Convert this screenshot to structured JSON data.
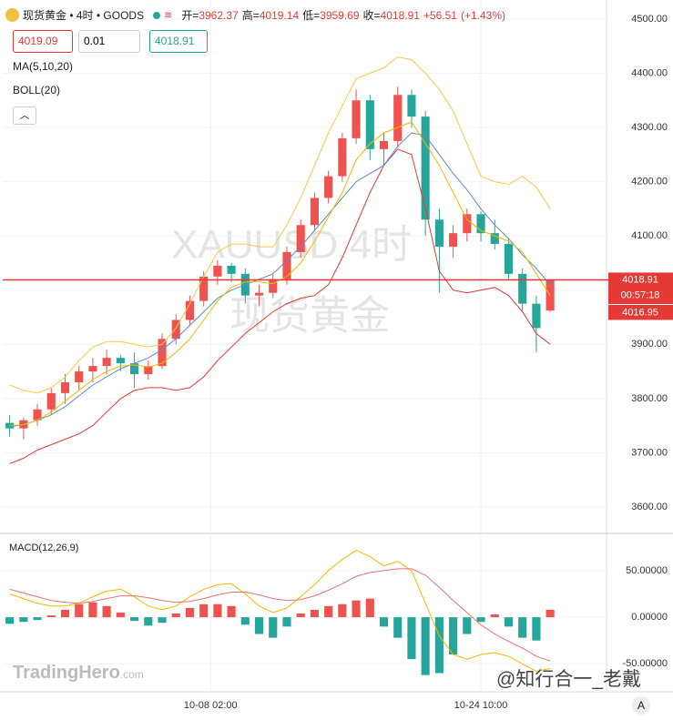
{
  "header": {
    "symbol": "现货黄金 • 4时 • GOODS",
    "ohlc": [
      {
        "label": "开=",
        "value": "3962.37"
      },
      {
        "label": "高=",
        "value": "4019.14"
      },
      {
        "label": "低=",
        "value": "3959.69"
      },
      {
        "label": "收=",
        "value": "4018.91"
      }
    ],
    "change": "+56.51",
    "change_pct": "(+1.43%)",
    "inputs": [
      "4019.09",
      "0.01",
      "4018.91"
    ],
    "indicators": [
      "MA(5,10,20)",
      "BOLL(20)"
    ]
  },
  "chart_data": [
    {
      "type": "candlestick",
      "up_color": "#ef5350",
      "down_color": "#26a69a",
      "grid": true,
      "watermark": [
        "XAUUSD 4时",
        "现货黄金"
      ],
      "x": [
        0,
        1,
        2,
        3,
        4,
        5,
        6,
        7,
        8,
        9,
        10,
        11,
        12,
        13,
        14,
        15,
        16,
        17,
        18,
        19,
        20,
        21,
        22,
        23,
        24,
        25,
        26,
        27,
        28,
        29,
        30,
        31,
        32,
        33,
        34,
        35,
        36,
        37,
        38,
        39
      ],
      "open": [
        3755,
        3745,
        3760,
        3780,
        3810,
        3830,
        3850,
        3860,
        3875,
        3865,
        3845,
        3860,
        3910,
        3945,
        3980,
        4025,
        4045,
        4030,
        3990,
        3995,
        4020,
        4070,
        4120,
        4170,
        4210,
        4280,
        4350,
        4260,
        4275,
        4360,
        4320,
        4130,
        4080,
        4105,
        4140,
        4105,
        4085,
        4030,
        3975,
        3962.37
      ],
      "high": [
        3770,
        3765,
        3790,
        3820,
        3845,
        3860,
        3875,
        3890,
        3880,
        3885,
        3870,
        3920,
        3955,
        3990,
        4035,
        4055,
        4050,
        4040,
        4010,
        4030,
        4080,
        4130,
        4180,
        4220,
        4290,
        4370,
        4360,
        4290,
        4375,
        4370,
        4330,
        4150,
        4120,
        4150,
        4145,
        4130,
        4095,
        4040,
        3990,
        4019.14
      ],
      "low": [
        3730,
        3725,
        3750,
        3770,
        3790,
        3815,
        3830,
        3845,
        3850,
        3820,
        3835,
        3855,
        3900,
        3935,
        3970,
        4010,
        4015,
        3975,
        3970,
        3985,
        4010,
        4060,
        4110,
        4160,
        4200,
        4270,
        4240,
        4230,
        4265,
        4300,
        4100,
        3995,
        4060,
        4090,
        4090,
        4075,
        4020,
        3960,
        3885,
        3959.69
      ],
      "close": [
        3745,
        3760,
        3780,
        3810,
        3830,
        3850,
        3860,
        3875,
        3865,
        3845,
        3860,
        3910,
        3945,
        3980,
        4025,
        4045,
        4030,
        3990,
        3995,
        4020,
        4070,
        4120,
        4170,
        4210,
        4280,
        4350,
        4260,
        4275,
        4360,
        4320,
        4130,
        4080,
        4105,
        4140,
        4105,
        4085,
        4030,
        3975,
        3930,
        4018.91
      ],
      "series": [
        {
          "color": "#f2c94c",
          "values": [
            3825,
            3815,
            3810,
            3820,
            3840,
            3870,
            3895,
            3905,
            3905,
            3900,
            3895,
            3900,
            3930,
            3975,
            4025,
            4070,
            4085,
            4085,
            4080,
            4080,
            4120,
            4170,
            4230,
            4290,
            4340,
            4390,
            4400,
            4410,
            4430,
            4425,
            4400,
            4370,
            4330,
            4270,
            4210,
            4200,
            4195,
            4210,
            4190,
            4150
          ]
        },
        {
          "color": "#e53935",
          "values": [
            3680,
            3690,
            3705,
            3715,
            3725,
            3735,
            3750,
            3775,
            3800,
            3815,
            3820,
            3820,
            3815,
            3820,
            3840,
            3870,
            3895,
            3920,
            3940,
            3960,
            3975,
            3985,
            3990,
            4010,
            4060,
            4120,
            4180,
            4230,
            4260,
            4250,
            4150,
            4035,
            4000,
            3995,
            4000,
            4005,
            3990,
            3960,
            3920,
            3900
          ]
        },
        {
          "color": "#5b8bc9",
          "values": [
            3748,
            3752,
            3760,
            3770,
            3785,
            3805,
            3825,
            3840,
            3855,
            3865,
            3875,
            3890,
            3910,
            3935,
            3960,
            3985,
            4000,
            4010,
            4020,
            4030,
            4055,
            4080,
            4110,
            4140,
            4170,
            4200,
            4215,
            4230,
            4265,
            4290,
            4285,
            4250,
            4215,
            4185,
            4150,
            4120,
            4095,
            4065,
            4040,
            4010
          ]
        },
        {
          "color": "#f5b700",
          "values": [
            3750,
            3752,
            3760,
            3775,
            3795,
            3815,
            3835,
            3850,
            3860,
            3862,
            3858,
            3865,
            3885,
            3910,
            3945,
            3980,
            4005,
            4015,
            4015,
            4012,
            4025,
            4050,
            4090,
            4135,
            4180,
            4240,
            4270,
            4290,
            4300,
            4310,
            4270,
            4230,
            4180,
            4130,
            4110,
            4100,
            4090,
            4070,
            4030,
            3990
          ]
        }
      ],
      "xlim": [
        -0.5,
        43
      ],
      "xticks": [
        {
          "value": 14.5,
          "label": "10-08 02:00"
        },
        {
          "value": 34,
          "label": "10-24 10:00"
        }
      ],
      "ylim": [
        3553,
        4535
      ],
      "yticks": [
        {
          "value": 3600,
          "label": "3600.00"
        },
        {
          "value": 3700,
          "label": "3700.00"
        },
        {
          "value": 3800,
          "label": "3800.00"
        },
        {
          "value": 3900,
          "label": "3900.00"
        },
        {
          "value": 4000,
          "label": "4000.00"
        },
        {
          "value": 4100,
          "label": "4100.00"
        },
        {
          "value": 4200,
          "label": "4200.00"
        },
        {
          "value": 4300,
          "label": "4300.00"
        },
        {
          "value": 4400,
          "label": "4400.00"
        },
        {
          "value": 4500,
          "label": "4500.00"
        }
      ],
      "price_line": {
        "value": 4018.91,
        "label": "4018.91"
      },
      "countdown": "00:57:18",
      "bid": "4016.95"
    },
    {
      "type": "bar",
      "title": "MACD(12,26,9)",
      "pos_color": "#ef5350",
      "neg_color": "#26a69a",
      "x": [
        0,
        1,
        2,
        3,
        4,
        5,
        6,
        7,
        8,
        9,
        10,
        11,
        12,
        13,
        14,
        15,
        16,
        17,
        18,
        19,
        20,
        21,
        22,
        23,
        24,
        25,
        26,
        27,
        28,
        29,
        30,
        31,
        32,
        33,
        34,
        35,
        36,
        37,
        38,
        39
      ],
      "values": [
        -7,
        -5,
        -3,
        2,
        8,
        14,
        16,
        12,
        5,
        -4,
        -9,
        -6,
        4,
        10,
        14,
        14,
        12,
        -8,
        -18,
        -22,
        -10,
        4,
        8,
        12,
        14,
        18,
        20,
        -10,
        -22,
        -45,
        -62,
        -60,
        -40,
        -18,
        -5,
        3,
        -10,
        -22,
        -25,
        8
      ],
      "series": [
        {
          "color": "#f5b700",
          "values": [
            25,
            20,
            15,
            12,
            12,
            15,
            22,
            28,
            30,
            22,
            12,
            8,
            12,
            22,
            30,
            35,
            36,
            25,
            12,
            5,
            10,
            22,
            35,
            50,
            62,
            72,
            65,
            55,
            60,
            50,
            15,
            -20,
            -40,
            -45,
            -40,
            -38,
            -42,
            -50,
            -58,
            -55
          ]
        },
        {
          "color": "#e57373",
          "values": [
            30,
            26,
            22,
            18,
            16,
            15,
            17,
            20,
            23,
            23,
            21,
            18,
            16,
            17,
            20,
            24,
            27,
            27,
            24,
            20,
            18,
            19,
            23,
            29,
            36,
            44,
            48,
            50,
            52,
            52,
            45,
            32,
            18,
            5,
            -8,
            -18,
            -26,
            -33,
            -42,
            -47
          ]
        }
      ],
      "xlim": [
        -0.5,
        43
      ],
      "ylim": [
        -80,
        89
      ],
      "yticks": [
        {
          "value": -50,
          "label": "-50.00000"
        },
        {
          "value": 0,
          "label": "0.00000"
        },
        {
          "value": 50,
          "label": "50.00000"
        }
      ]
    }
  ],
  "footer": {
    "logo": "TradingHero",
    "logo_suffix": ".com",
    "credit": "@知行合一_老戴",
    "button": "A"
  }
}
